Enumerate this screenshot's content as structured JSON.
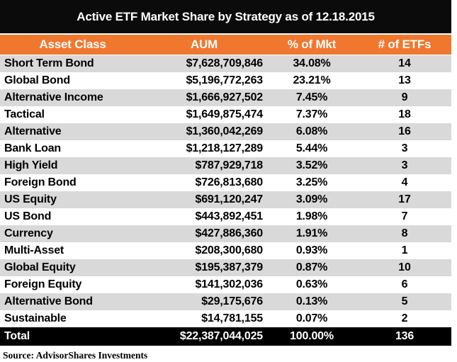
{
  "chart_data": {
    "type": "table",
    "title": "Active ETF Market Share by Strategy as of 12.18.2015",
    "columns": [
      "Asset Class",
      "AUM",
      "% of Mkt",
      "# of ETFs"
    ],
    "rows": [
      {
        "asset_class": "Short Term Bond",
        "aum": "$7,628,709,846",
        "pct_of_mkt": "34.08%",
        "num_etfs": "14"
      },
      {
        "asset_class": "Global Bond",
        "aum": "$5,196,772,263",
        "pct_of_mkt": "23.21%",
        "num_etfs": "13"
      },
      {
        "asset_class": "Alternative Income",
        "aum": "$1,666,927,502",
        "pct_of_mkt": "7.45%",
        "num_etfs": "9"
      },
      {
        "asset_class": "Tactical",
        "aum": "$1,649,875,474",
        "pct_of_mkt": "7.37%",
        "num_etfs": "18"
      },
      {
        "asset_class": "Alternative",
        "aum": "$1,360,042,269",
        "pct_of_mkt": "6.08%",
        "num_etfs": "16"
      },
      {
        "asset_class": "Bank Loan",
        "aum": "$1,218,127,289",
        "pct_of_mkt": "5.44%",
        "num_etfs": "3"
      },
      {
        "asset_class": "High Yield",
        "aum": "$787,929,718",
        "pct_of_mkt": "3.52%",
        "num_etfs": "3"
      },
      {
        "asset_class": "Foreign Bond",
        "aum": "$726,813,680",
        "pct_of_mkt": "3.25%",
        "num_etfs": "4"
      },
      {
        "asset_class": "US Equity",
        "aum": "$691,120,247",
        "pct_of_mkt": "3.09%",
        "num_etfs": "17"
      },
      {
        "asset_class": "US Bond",
        "aum": "$443,892,451",
        "pct_of_mkt": "1.98%",
        "num_etfs": "7"
      },
      {
        "asset_class": "Currency",
        "aum": "$427,886,360",
        "pct_of_mkt": "1.91%",
        "num_etfs": "8"
      },
      {
        "asset_class": "Multi-Asset",
        "aum": "$208,300,680",
        "pct_of_mkt": "0.93%",
        "num_etfs": "1"
      },
      {
        "asset_class": "Global Equity",
        "aum": "$195,387,379",
        "pct_of_mkt": "0.87%",
        "num_etfs": "10"
      },
      {
        "asset_class": "Foreign Equity",
        "aum": "$141,302,036",
        "pct_of_mkt": "0.63%",
        "num_etfs": "6"
      },
      {
        "asset_class": "Alternative Bond",
        "aum": "$29,175,676",
        "pct_of_mkt": "0.13%",
        "num_etfs": "5"
      },
      {
        "asset_class": "Sustainable",
        "aum": "$14,781,155",
        "pct_of_mkt": "0.07%",
        "num_etfs": "2"
      }
    ],
    "total": {
      "asset_class": "Total",
      "aum": "$22,387,044,025",
      "pct_of_mkt": "100.00%",
      "num_etfs": "136"
    },
    "source": "Source: AdvisorShares Investments",
    "layout_hints": {
      "banding": "odd data rows shaded starting with first row",
      "colors": {
        "title_bar": "#0B0B0B",
        "header_bg": "#F0772E",
        "band_gray": "#D9D9D9",
        "total_bar": "#000000",
        "header_text": "#FFFFFF",
        "body_text": "#000000"
      }
    }
  }
}
